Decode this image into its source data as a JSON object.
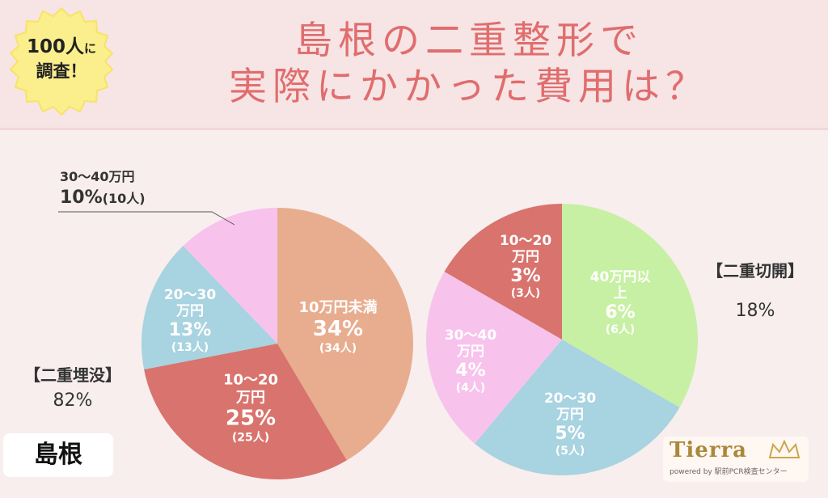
{
  "header": {
    "title_line1": "島根の二重整形で",
    "title_line2": "実際にかかった費用は？",
    "badge_line1_a": "100人",
    "badge_line1_b": "に",
    "badge_line2": "調査！"
  },
  "region": "島根",
  "logo": {
    "name": "Tierra",
    "sub": "powered by 駅前PCR検査センター"
  },
  "chart_data": [
    {
      "type": "pie",
      "category": "【二重埋没】",
      "category_share": "82%",
      "slices": [
        {
          "label": "10万円未満",
          "value": 34,
          "percent": "34%",
          "count": "(34人)",
          "color": "#e8ad8f"
        },
        {
          "label": "10〜20万円",
          "value": 25,
          "percent": "25%",
          "count": "(25人)",
          "color": "#d9736d"
        },
        {
          "label": "20〜30万円",
          "value": 13,
          "percent": "13%",
          "count": "(13人)",
          "color": "#a8d3e0"
        },
        {
          "label": "30〜40万円",
          "value": 10,
          "percent": "10%",
          "count": "(10人)",
          "color": "#f7c3ec"
        }
      ]
    },
    {
      "type": "pie",
      "category": "【二重切開】",
      "category_share": "18%",
      "slices": [
        {
          "label": "40万円以上",
          "value": 6,
          "percent": "6%",
          "count": "(6人)",
          "color": "#c7f0a4"
        },
        {
          "label": "20〜30万円",
          "value": 5,
          "percent": "5%",
          "count": "(5人)",
          "color": "#a8d3e0"
        },
        {
          "label": "30〜40万円",
          "value": 4,
          "percent": "4%",
          "count": "(4人)",
          "color": "#f7c3ec"
        },
        {
          "label": "10〜20万円",
          "value": 3,
          "percent": "3%",
          "count": "(3人)",
          "color": "#d9736d"
        }
      ]
    }
  ]
}
